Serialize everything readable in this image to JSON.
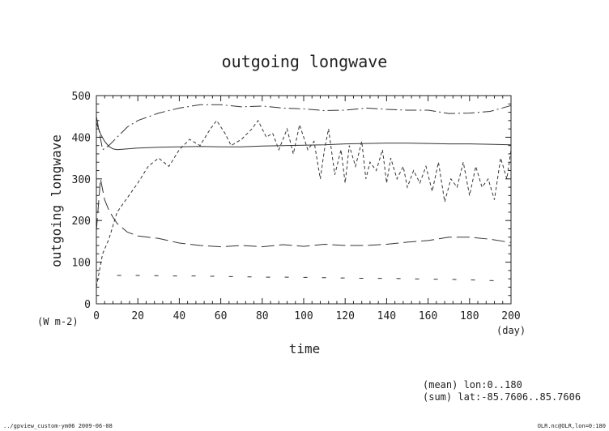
{
  "title": "outgoing longwave",
  "footer": {
    "left": "../gpview_custom-ym06  2009-06-08",
    "right": "OLR.nc@OLR,lon=0:180"
  },
  "meta_lines": [
    "(mean) lon:0..180",
    "(sum) lat:-85.7606..85.7606"
  ],
  "chart_data": {
    "type": "line",
    "title": "outgoing longwave",
    "xlabel": "time",
    "xunit": "(day)",
    "ylabel": "outgoing longwave",
    "yunit": "(W m-2)",
    "xlim": [
      0,
      200
    ],
    "ylim": [
      0,
      500
    ],
    "xticks": [
      0,
      20,
      40,
      60,
      80,
      100,
      120,
      140,
      160,
      180,
      200
    ],
    "yticks": [
      0,
      100,
      200,
      300,
      400,
      500
    ],
    "series": [
      {
        "style": "solid",
        "x": [
          0,
          2,
          4,
          6,
          8,
          10,
          15,
          20,
          30,
          40,
          50,
          60,
          70,
          80,
          90,
          100,
          110,
          120,
          130,
          140,
          150,
          160,
          170,
          180,
          190,
          200
        ],
        "values": [
          435,
          408,
          390,
          378,
          372,
          370,
          372,
          374,
          376,
          377,
          378,
          377,
          377,
          379,
          380,
          381,
          382,
          384,
          385,
          386,
          386,
          385,
          384,
          384,
          383,
          382
        ]
      },
      {
        "style": "long-dash-dot",
        "x": [
          0,
          3,
          6,
          10,
          15,
          20,
          30,
          40,
          50,
          60,
          70,
          80,
          90,
          100,
          110,
          120,
          130,
          140,
          150,
          160,
          170,
          180,
          190,
          200
        ],
        "values": [
          450,
          370,
          380,
          400,
          425,
          440,
          458,
          470,
          478,
          478,
          473,
          475,
          470,
          468,
          464,
          465,
          470,
          467,
          465,
          465,
          457,
          458,
          462,
          476
        ]
      },
      {
        "style": "long-dash",
        "x": [
          0,
          2,
          4,
          6,
          8,
          10,
          15,
          20,
          30,
          40,
          50,
          60,
          70,
          80,
          90,
          100,
          110,
          120,
          130,
          140,
          150,
          160,
          170,
          180,
          190,
          200
        ],
        "values": [
          175,
          300,
          250,
          225,
          208,
          193,
          172,
          163,
          157,
          146,
          140,
          137,
          140,
          137,
          142,
          138,
          143,
          140,
          140,
          143,
          148,
          152,
          160,
          160,
          155,
          147
        ]
      },
      {
        "style": "dashed-noisy",
        "x": [
          0,
          3,
          6,
          10,
          15,
          20,
          25,
          30,
          35,
          40,
          45,
          50,
          55,
          58,
          62,
          65,
          70,
          75,
          78,
          82,
          85,
          88,
          92,
          95,
          98,
          102,
          105,
          108,
          110,
          112,
          115,
          118,
          120,
          122,
          125,
          128,
          130,
          132,
          135,
          138,
          140,
          142,
          145,
          148,
          150,
          153,
          156,
          159,
          162,
          165,
          168,
          171,
          174,
          177,
          180,
          183,
          186,
          189,
          192,
          195,
          198,
          200
        ],
        "values": [
          40,
          120,
          155,
          220,
          255,
          290,
          330,
          350,
          330,
          370,
          395,
          380,
          420,
          440,
          410,
          380,
          395,
          420,
          440,
          400,
          410,
          370,
          420,
          360,
          430,
          370,
          390,
          300,
          370,
          420,
          310,
          370,
          290,
          380,
          330,
          390,
          300,
          340,
          320,
          370,
          290,
          350,
          300,
          330,
          280,
          320,
          290,
          330,
          270,
          340,
          245,
          300,
          280,
          340,
          260,
          330,
          280,
          300,
          250,
          350,
          300,
          370
        ]
      },
      {
        "style": "sparse-dash",
        "x": [
          10,
          22,
          34,
          46,
          58,
          70,
          82,
          94,
          106,
          118,
          130,
          142,
          154,
          166,
          178,
          188,
          196
        ],
        "values": [
          68,
          68,
          67,
          67,
          66,
          65,
          64,
          64,
          63,
          62,
          61,
          61,
          60,
          59,
          58,
          56,
          55
        ]
      }
    ]
  }
}
